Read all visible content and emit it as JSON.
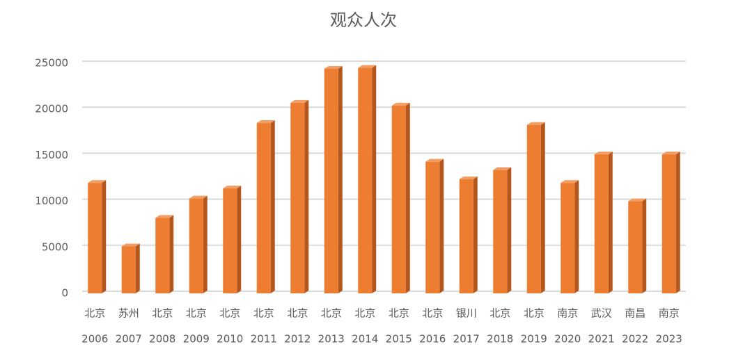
{
  "chart_data": {
    "type": "bar",
    "title": "观众人次",
    "categories": [
      [
        "北京",
        "2006"
      ],
      [
        "苏州",
        "2007"
      ],
      [
        "北京",
        "2008"
      ],
      [
        "北京",
        "2009"
      ],
      [
        "北京",
        "2010"
      ],
      [
        "北京",
        "2011"
      ],
      [
        "北京",
        "2012"
      ],
      [
        "北京",
        "2013"
      ],
      [
        "北京",
        "2014"
      ],
      [
        "北京",
        "2015"
      ],
      [
        "北京",
        "2016"
      ],
      [
        "银川",
        "2017"
      ],
      [
        "北京",
        "2018"
      ],
      [
        "北京",
        "2019"
      ],
      [
        "南京",
        "2020"
      ],
      [
        "武汉",
        "2021"
      ],
      [
        "南昌",
        "2022"
      ],
      [
        "南京",
        "2023"
      ]
    ],
    "values": [
      12000,
      5100,
      8200,
      10300,
      11400,
      18500,
      20700,
      24400,
      24500,
      20400,
      14300,
      12400,
      13400,
      18300,
      12000,
      15100,
      10000,
      15100
    ],
    "color": "#ed7d31",
    "ylim": [
      0,
      25000
    ],
    "yticks": [
      0,
      5000,
      10000,
      15000,
      20000,
      25000
    ],
    "grid": true
  }
}
